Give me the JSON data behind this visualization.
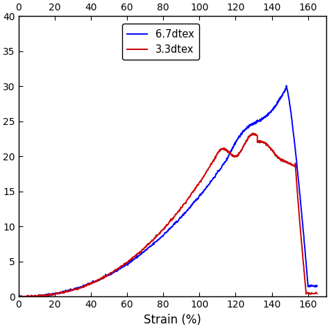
{
  "title": "",
  "xlabel": "Strain (%)",
  "ylabel": "",
  "xlim": [
    0,
    170
  ],
  "ylim": [
    0,
    40
  ],
  "xticks_bottom": [
    0,
    20,
    40,
    60,
    80,
    100,
    120,
    140,
    160
  ],
  "xticks_top": [
    0,
    20,
    40,
    60,
    80,
    100,
    120,
    140,
    160
  ],
  "yticks": [
    0,
    5,
    10,
    15,
    20,
    25,
    30,
    35,
    40
  ],
  "legend_entries": [
    "6.7dtex",
    "3.3dtex"
  ],
  "line_colors": [
    "#0000ff",
    "#cc0000"
  ],
  "line_width": 1.4,
  "background_color": "#ffffff"
}
